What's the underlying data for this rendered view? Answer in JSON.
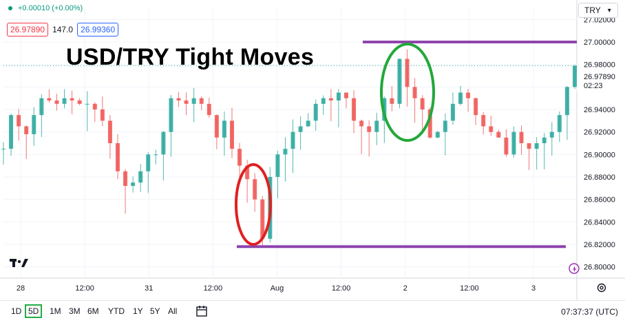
{
  "header": {
    "change_text": "+0.00010 (+0.00%)",
    "bid": "26.97890",
    "spread": "147.0",
    "ask": "26.99360",
    "currency": "TRY"
  },
  "annotation": {
    "title": "USD/TRY Tight Moves",
    "colors": {
      "range_lines": "#8e44ad",
      "low_circle": "#e02020",
      "high_circle": "#22a83a"
    }
  },
  "price_tag": {
    "price": "26.97890",
    "countdown": "02:23"
  },
  "bottom_bar": {
    "timeframes": [
      "1D",
      "5D",
      "1M",
      "3M",
      "6M",
      "YTD",
      "1Y",
      "5Y",
      "All"
    ],
    "active_timeframe": "5D",
    "clock": "07:37:37 (UTC)"
  },
  "chart_data": {
    "type": "line",
    "symbol": "USD/TRY",
    "ylim": [
      26.79,
      27.03
    ],
    "y_ticks": [
      "27.02000",
      "27.00000",
      "26.98000",
      "26.96000",
      "26.94000",
      "26.92000",
      "26.90000",
      "26.88000",
      "26.86000",
      "26.84000",
      "26.82000",
      "26.80000"
    ],
    "x_ticks": [
      "28",
      "12:00",
      "31",
      "12:00",
      "Aug",
      "12:00",
      "2",
      "12:00",
      "3"
    ],
    "last_price": 26.9789,
    "resistance": 27.0,
    "support": 26.818,
    "series": [
      {
        "values": [
          26.905,
          26.935,
          26.925,
          26.918,
          26.935,
          26.95,
          26.948,
          26.945,
          26.95,
          26.948,
          26.945,
          26.945,
          26.94,
          26.93,
          26.91,
          26.885,
          26.872,
          26.875,
          26.885,
          26.9,
          26.9,
          26.92,
          26.95,
          26.948,
          26.945,
          26.95,
          26.945,
          26.935,
          26.915,
          26.93,
          26.905,
          26.89,
          26.878,
          26.86,
          26.825,
          26.88,
          26.9,
          26.905,
          26.92,
          26.925,
          26.93,
          26.945,
          26.95,
          26.948,
          26.955,
          26.95,
          26.93,
          26.925,
          26.92,
          26.93,
          26.95,
          26.945,
          26.985,
          26.96,
          26.95,
          26.94,
          26.915,
          26.92,
          26.93,
          26.945,
          26.955,
          26.95,
          26.935,
          26.925,
          26.92,
          26.915,
          26.9,
          26.92,
          26.91,
          26.905,
          26.91,
          26.915,
          26.92,
          26.935,
          26.96,
          26.9789
        ]
      }
    ]
  }
}
